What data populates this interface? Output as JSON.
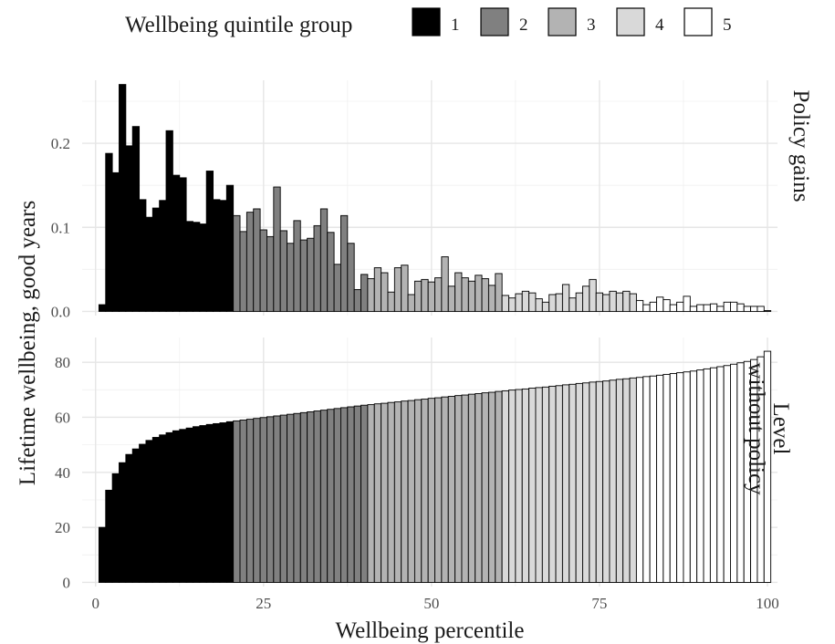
{
  "legend": {
    "title": "Wellbeing quintile group",
    "items": [
      {
        "label": "1",
        "color": "#000000"
      },
      {
        "label": "2",
        "color": "#808080"
      },
      {
        "label": "3",
        "color": "#b3b3b3"
      },
      {
        "label": "4",
        "color": "#d9d9d9"
      },
      {
        "label": "5",
        "color": "#ffffff"
      }
    ]
  },
  "chart_data": {
    "type": "bar",
    "xlabel": "Wellbeing percentile",
    "ylabel": "Lifetime wellbeing, good years",
    "x": [
      1,
      2,
      3,
      4,
      5,
      6,
      7,
      8,
      9,
      10,
      11,
      12,
      13,
      14,
      15,
      16,
      17,
      18,
      19,
      20,
      21,
      22,
      23,
      24,
      25,
      26,
      27,
      28,
      29,
      30,
      31,
      32,
      33,
      34,
      35,
      36,
      37,
      38,
      39,
      40,
      41,
      42,
      43,
      44,
      45,
      46,
      47,
      48,
      49,
      50,
      51,
      52,
      53,
      54,
      55,
      56,
      57,
      58,
      59,
      60,
      61,
      62,
      63,
      64,
      65,
      66,
      67,
      68,
      69,
      70,
      71,
      72,
      73,
      74,
      75,
      76,
      77,
      78,
      79,
      80,
      81,
      82,
      83,
      84,
      85,
      86,
      87,
      88,
      89,
      90,
      91,
      92,
      93,
      94,
      95,
      96,
      97,
      98,
      99,
      100
    ],
    "group": [
      1,
      1,
      1,
      1,
      1,
      1,
      1,
      1,
      1,
      1,
      1,
      1,
      1,
      1,
      1,
      1,
      1,
      1,
      1,
      1,
      2,
      2,
      2,
      2,
      2,
      2,
      2,
      2,
      2,
      2,
      2,
      2,
      2,
      2,
      2,
      2,
      2,
      2,
      2,
      2,
      3,
      3,
      3,
      3,
      3,
      3,
      3,
      3,
      3,
      3,
      3,
      3,
      3,
      3,
      3,
      3,
      3,
      3,
      3,
      3,
      4,
      4,
      4,
      4,
      4,
      4,
      4,
      4,
      4,
      4,
      4,
      4,
      4,
      4,
      4,
      4,
      4,
      4,
      4,
      4,
      5,
      5,
      5,
      5,
      5,
      5,
      5,
      5,
      5,
      5,
      5,
      5,
      5,
      5,
      5,
      5,
      5,
      5,
      5,
      5
    ],
    "xticks": [
      0,
      25,
      50,
      75,
      100
    ],
    "xlim": [
      -2,
      101.5
    ],
    "panels": [
      {
        "name": "Policy gains",
        "ylim": [
          -0.005,
          0.275
        ],
        "yticks": [
          0.0,
          0.1,
          0.2
        ],
        "ytick_labels": [
          "0.0",
          "0.1",
          "0.2"
        ],
        "values": [
          0.008,
          0.188,
          0.165,
          0.27,
          0.197,
          0.22,
          0.133,
          0.112,
          0.123,
          0.132,
          0.215,
          0.162,
          0.159,
          0.107,
          0.106,
          0.104,
          0.167,
          0.133,
          0.132,
          0.15,
          0.114,
          0.095,
          0.118,
          0.122,
          0.097,
          0.089,
          0.148,
          0.096,
          0.081,
          0.108,
          0.085,
          0.087,
          0.102,
          0.122,
          0.094,
          0.056,
          0.114,
          0.081,
          0.026,
          0.044,
          0.039,
          0.052,
          0.046,
          0.023,
          0.052,
          0.055,
          0.02,
          0.036,
          0.038,
          0.035,
          0.04,
          0.065,
          0.03,
          0.046,
          0.04,
          0.036,
          0.043,
          0.039,
          0.031,
          0.045,
          0.019,
          0.016,
          0.021,
          0.024,
          0.022,
          0.015,
          0.011,
          0.02,
          0.021,
          0.032,
          0.016,
          0.022,
          0.03,
          0.038,
          0.022,
          0.02,
          0.024,
          0.022,
          0.024,
          0.021,
          0.013,
          0.008,
          0.011,
          0.017,
          0.014,
          0.008,
          0.011,
          0.018,
          0.006,
          0.008,
          0.008,
          0.009,
          0.006,
          0.011,
          0.011,
          0.009,
          0.006,
          0.006,
          0.006,
          0.001
        ]
      },
      {
        "name": "Level\nwithout policy",
        "ylim": [
          -1.5,
          89
        ],
        "yticks": [
          0,
          20,
          40,
          60,
          80
        ],
        "ytick_labels": [
          "0",
          "20",
          "40",
          "60",
          "80"
        ],
        "values": [
          20.0,
          33.5,
          39.5,
          43.5,
          46.5,
          48.5,
          50.2,
          51.6,
          52.7,
          53.6,
          54.4,
          55.1,
          55.6,
          56.1,
          56.6,
          57.0,
          57.4,
          57.7,
          58.0,
          58.4,
          58.7,
          59.0,
          59.3,
          59.6,
          59.9,
          60.2,
          60.5,
          60.8,
          61.1,
          61.4,
          61.7,
          62.0,
          62.3,
          62.6,
          62.9,
          63.2,
          63.5,
          63.8,
          64.1,
          64.4,
          64.6,
          64.9,
          65.1,
          65.4,
          65.6,
          65.9,
          66.1,
          66.4,
          66.6,
          66.9,
          67.1,
          67.4,
          67.6,
          67.9,
          68.1,
          68.4,
          68.6,
          68.9,
          69.1,
          69.4,
          69.6,
          69.9,
          70.1,
          70.3,
          70.6,
          70.8,
          71.0,
          71.3,
          71.5,
          71.8,
          72.0,
          72.3,
          72.5,
          72.8,
          73.0,
          73.2,
          73.5,
          73.8,
          74.0,
          74.3,
          74.5,
          74.8,
          75.0,
          75.3,
          75.6,
          75.9,
          76.2,
          76.5,
          76.8,
          77.2,
          77.6,
          78.0,
          78.4,
          78.8,
          79.3,
          79.8,
          80.3,
          81.0,
          82.0,
          84.0
        ]
      }
    ],
    "grid": true,
    "legend_position": "top"
  }
}
